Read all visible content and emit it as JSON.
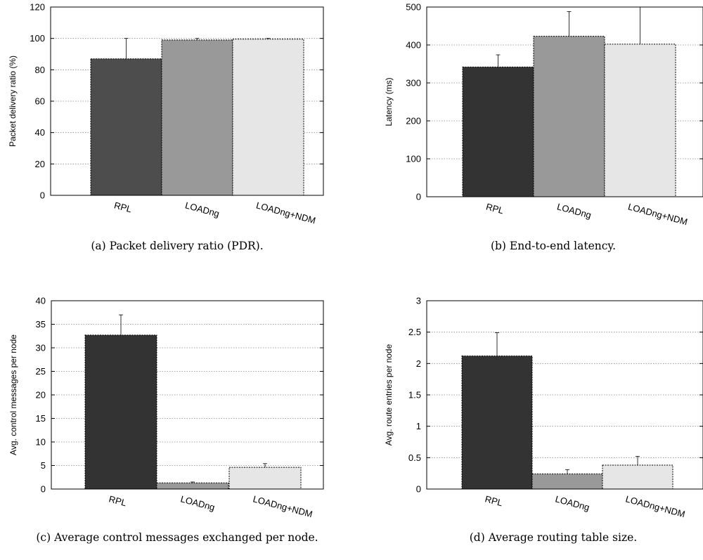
{
  "chart_data": [
    {
      "type": "bar",
      "caption": "(a) Packet delivery ratio (PDR).",
      "ylabel": "Packet delivery ratio (%)",
      "categories": [
        "RPL",
        "LOADng",
        "LOADng+NDM"
      ],
      "values": [
        87,
        99,
        99.5
      ],
      "errors": [
        13,
        1,
        0.5
      ],
      "ylim": [
        0,
        120
      ],
      "yticks": [
        0,
        20,
        40,
        60,
        80,
        100,
        120
      ],
      "ytick_labels": [
        "0",
        "20",
        "40",
        "60",
        "80",
        "100",
        "120"
      ],
      "colors": [
        "#4d4d4d",
        "#999999",
        "#e6e6e6"
      ],
      "grid": true
    },
    {
      "type": "bar",
      "caption": "(b) End-to-end latency.",
      "ylabel": "Latency (ms)",
      "categories": [
        "RPL",
        "LOADng",
        "LOADng+NDM"
      ],
      "values": [
        342,
        423,
        402
      ],
      "errors": [
        32,
        65,
        98
      ],
      "ylim": [
        0,
        500
      ],
      "yticks": [
        0,
        100,
        200,
        300,
        400,
        500
      ],
      "ytick_labels": [
        "0",
        "100",
        "200",
        "300",
        "400",
        "500"
      ],
      "colors": [
        "#333333",
        "#999999",
        "#e6e6e6"
      ],
      "grid": true
    },
    {
      "type": "bar",
      "caption": "(c) Average control messages exchanged per node.",
      "ylabel": "Avg. control messages per node",
      "categories": [
        "RPL",
        "LOADng",
        "LOADng+NDM"
      ],
      "values": [
        32.7,
        1.3,
        4.6
      ],
      "errors": [
        4.3,
        0.2,
        0.8
      ],
      "ylim": [
        0,
        40
      ],
      "yticks": [
        0,
        5,
        10,
        15,
        20,
        25,
        30,
        35,
        40
      ],
      "ytick_labels": [
        "0",
        "5",
        "10",
        "15",
        "20",
        "25",
        "30",
        "35",
        "40"
      ],
      "colors": [
        "#333333",
        "#999999",
        "#e6e6e6"
      ],
      "grid": true
    },
    {
      "type": "bar",
      "caption": "(d) Average routing table size.",
      "ylabel": "Avg. route entries per node",
      "categories": [
        "RPL",
        "LOADng",
        "LOADng+NDM"
      ],
      "values": [
        2.12,
        0.24,
        0.38
      ],
      "errors": [
        0.37,
        0.07,
        0.14
      ],
      "ylim": [
        0,
        3
      ],
      "yticks": [
        0,
        0.5,
        1,
        1.5,
        2,
        2.5,
        3
      ],
      "ytick_labels": [
        "0",
        "0.5",
        "1",
        "1.5",
        "2",
        "2.5",
        "3"
      ],
      "colors": [
        "#333333",
        "#999999",
        "#e6e6e6"
      ],
      "grid": true
    }
  ]
}
